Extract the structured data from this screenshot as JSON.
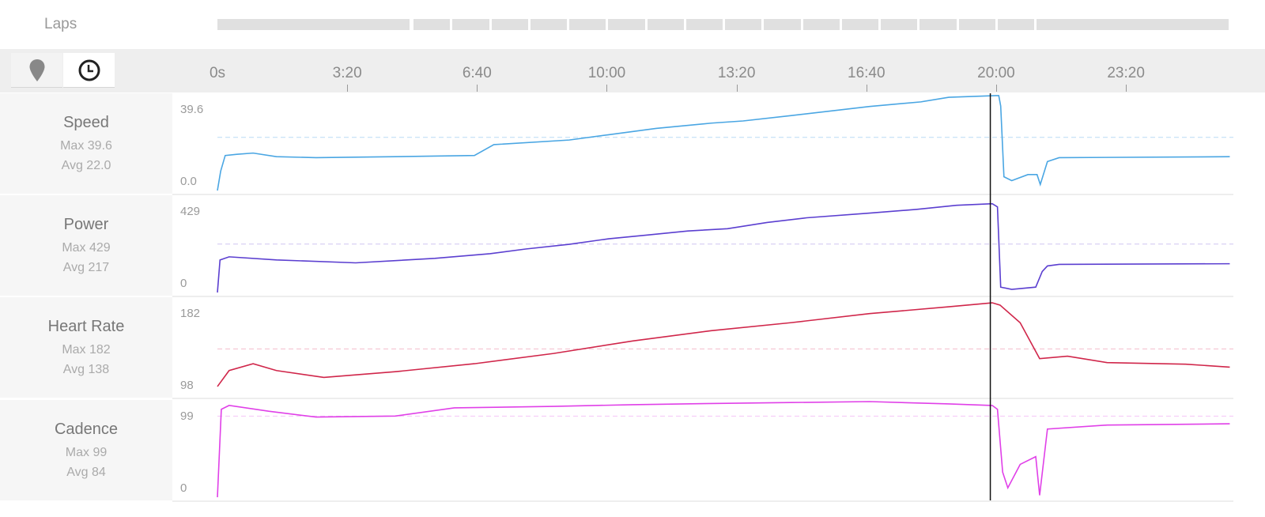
{
  "laps": {
    "label": "Laps",
    "durations_s": [
      300,
      60,
      60,
      60,
      60,
      60,
      60,
      60,
      60,
      60,
      60,
      60,
      60,
      60,
      60,
      60,
      60,
      300
    ]
  },
  "toolbar": {
    "distance_icon": "map-pin-icon",
    "time_icon": "clock-icon",
    "selected": "time"
  },
  "chart_data": {
    "type": "line",
    "x_unit": "seconds",
    "xlim": [
      0,
      1560
    ],
    "x_ticks": [
      "0s",
      "3:20",
      "6:40",
      "10:00",
      "13:20",
      "16:40",
      "20:00",
      "23:20"
    ],
    "x_tick_values": [
      0,
      200,
      400,
      600,
      800,
      1000,
      1200,
      1400
    ],
    "cursor_t": 1191,
    "panels": [
      {
        "name": "Speed",
        "max_label": "Max 39.6",
        "avg_label": "Avg 22.0",
        "ymax_label": "39.6",
        "ymin_label": "0.0",
        "ylim": [
          0,
          39.6
        ],
        "avg": 22.0,
        "color": "#4aa6e3",
        "avg_color": "#b9dcf5",
        "points": [
          [
            0,
            0
          ],
          [
            5,
            8
          ],
          [
            12,
            14.5
          ],
          [
            30,
            15
          ],
          [
            55,
            15.5
          ],
          [
            91,
            14
          ],
          [
            152,
            13.6
          ],
          [
            274,
            14
          ],
          [
            396,
            14.5
          ],
          [
            426,
            19
          ],
          [
            542,
            20.9
          ],
          [
            603,
            23.1
          ],
          [
            676,
            25.7
          ],
          [
            761,
            27.9
          ],
          [
            810,
            28.8
          ],
          [
            883,
            31
          ],
          [
            1005,
            34.8
          ],
          [
            1084,
            36.7
          ],
          [
            1127,
            38.6
          ],
          [
            1200,
            39.3
          ],
          [
            1204,
            39.3
          ],
          [
            1207,
            35
          ],
          [
            1212,
            5.7
          ],
          [
            1224,
            4.1
          ],
          [
            1249,
            6.6
          ],
          [
            1263,
            6.6
          ],
          [
            1268,
            2.5
          ],
          [
            1279,
            12
          ],
          [
            1297,
            13.6
          ],
          [
            1560,
            14
          ]
        ]
      },
      {
        "name": "Power",
        "max_label": "Max 429",
        "avg_label": "Avg 217",
        "ymax_label": "429",
        "ymin_label": "0",
        "ylim": [
          0,
          429
        ],
        "avg": 217,
        "color": "#5b3fd0",
        "avg_color": "#cfc5f0",
        "points": [
          [
            0,
            0
          ],
          [
            4,
            146
          ],
          [
            18,
            160
          ],
          [
            91,
            146
          ],
          [
            213,
            133
          ],
          [
            335,
            153
          ],
          [
            420,
            174
          ],
          [
            475,
            195
          ],
          [
            542,
            216
          ],
          [
            603,
            241
          ],
          [
            664,
            258
          ],
          [
            725,
            276
          ],
          [
            786,
            286
          ],
          [
            847,
            314
          ],
          [
            908,
            335
          ],
          [
            1005,
            356
          ],
          [
            1078,
            373
          ],
          [
            1139,
            391
          ],
          [
            1194,
            398
          ],
          [
            1202,
            384
          ],
          [
            1207,
            24
          ],
          [
            1224,
            14
          ],
          [
            1261,
            24
          ],
          [
            1271,
            94
          ],
          [
            1279,
            119
          ],
          [
            1297,
            126
          ],
          [
            1560,
            129
          ]
        ]
      },
      {
        "name": "Heart Rate",
        "max_label": "Max 182",
        "avg_label": "Avg 138",
        "ymax_label": "182",
        "ymin_label": "98",
        "ylim": [
          98,
          182
        ],
        "avg": 138,
        "color": "#d0264a",
        "avg_color": "#f3bccb",
        "points": [
          [
            0,
            105
          ],
          [
            18,
            119
          ],
          [
            55,
            125
          ],
          [
            91,
            119
          ],
          [
            164,
            113
          ],
          [
            274,
            118
          ],
          [
            396,
            125
          ],
          [
            518,
            134
          ],
          [
            640,
            145
          ],
          [
            761,
            154
          ],
          [
            883,
            161
          ],
          [
            1005,
            169
          ],
          [
            1127,
            175
          ],
          [
            1194,
            178.5
          ],
          [
            1206,
            176.5
          ],
          [
            1237,
            161
          ],
          [
            1267,
            129.5
          ],
          [
            1310,
            131.6
          ],
          [
            1371,
            126
          ],
          [
            1492,
            124.6
          ],
          [
            1560,
            122
          ]
        ]
      },
      {
        "name": "Cadence",
        "max_label": "Max 99",
        "avg_label": "Avg 84",
        "ymax_label": "99",
        "ymin_label": "0",
        "ylim": [
          0,
          99
        ],
        "avg": 84,
        "color": "#e040e8",
        "avg_color": "#f5c4f7",
        "points": [
          [
            0,
            0
          ],
          [
            6,
            91
          ],
          [
            18,
            95
          ],
          [
            79,
            89
          ],
          [
            152,
            83
          ],
          [
            274,
            84
          ],
          [
            365,
            92.5
          ],
          [
            518,
            94
          ],
          [
            640,
            95.8
          ],
          [
            761,
            97
          ],
          [
            883,
            98
          ],
          [
            1005,
            99
          ],
          [
            1127,
            96.6
          ],
          [
            1194,
            95
          ],
          [
            1202,
            91
          ],
          [
            1210,
            26
          ],
          [
            1218,
            9.7
          ],
          [
            1237,
            34
          ],
          [
            1261,
            42
          ],
          [
            1267,
            2
          ],
          [
            1279,
            70.6
          ],
          [
            1371,
            74.7
          ],
          [
            1560,
            76
          ]
        ]
      }
    ]
  }
}
